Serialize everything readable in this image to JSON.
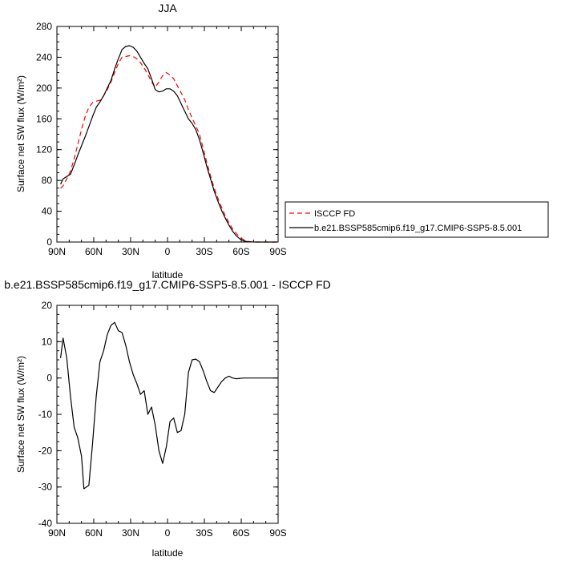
{
  "chart_data": [
    {
      "type": "line",
      "title": "JJA",
      "xlabel": "latitude",
      "ylabel": "Surface net SW flux (W/m²)",
      "xlim": [
        90,
        -90
      ],
      "ylim": [
        0,
        280
      ],
      "yticks": [
        0,
        40,
        80,
        120,
        160,
        200,
        240,
        280
      ],
      "xticks": [
        90,
        60,
        30,
        0,
        -30,
        -60,
        -90
      ],
      "xtick_labels": [
        "90N",
        "60N",
        "30N",
        "0",
        "30S",
        "60S",
        "90S"
      ],
      "legend": "right, outside plot",
      "series": [
        {
          "name": "ISCCP FD",
          "color": "#ff0000",
          "dash": "dashed",
          "x": [
            87,
            85,
            82,
            79,
            76,
            73,
            70,
            67,
            64,
            61,
            58,
            55,
            52,
            49,
            46,
            43,
            40,
            37,
            34,
            31,
            28,
            25,
            22,
            19,
            16,
            13,
            10,
            7,
            4,
            1,
            -2,
            -5,
            -8,
            -11,
            -14,
            -17,
            -20,
            -23,
            -26,
            -29,
            -32,
            -35,
            -38,
            -41,
            -44,
            -47,
            -50,
            -53,
            -56,
            -59,
            -62,
            -65,
            -68,
            -71,
            -74,
            -77,
            -80,
            -83,
            -86,
            -89
          ],
          "values": [
            70,
            73,
            82,
            92,
            108,
            127,
            146,
            163,
            175,
            181,
            183,
            184,
            190,
            198,
            208,
            220,
            232,
            240,
            241,
            242,
            241,
            238,
            233,
            226,
            218,
            208,
            201,
            208,
            216,
            220,
            217,
            212,
            203,
            194,
            185,
            172,
            161,
            151,
            140,
            122,
            103,
            86,
            70,
            57,
            45,
            34,
            25,
            17,
            11,
            6,
            3,
            1,
            0.3,
            0,
            0,
            0,
            0,
            0,
            0,
            0
          ]
        },
        {
          "name": "b.e21.BSSP585cmip6.f19_g17.CMIP6-SSP5-8.5.001",
          "color": "#000000",
          "dash": "solid",
          "x": [
            87,
            85,
            82,
            79,
            76,
            73,
            70,
            67,
            64,
            61,
            58,
            55,
            52,
            49,
            46,
            43,
            40,
            37,
            34,
            31,
            28,
            25,
            22,
            19,
            16,
            13,
            10,
            7,
            4,
            1,
            -2,
            -5,
            -8,
            -11,
            -14,
            -17,
            -20,
            -23,
            -26,
            -29,
            -32,
            -35,
            -38,
            -41,
            -44,
            -47,
            -50,
            -53,
            -56,
            -59,
            -62,
            -65,
            -68,
            -71,
            -74,
            -77,
            -80,
            -83,
            -86,
            -89
          ],
          "values": [
            75,
            82,
            85,
            88,
            100,
            113,
            125,
            137,
            150,
            163,
            175,
            182,
            190,
            200,
            210,
            225,
            238,
            250,
            254,
            255,
            253,
            248,
            240,
            232,
            225,
            212,
            198,
            195,
            196,
            199,
            199,
            196,
            190,
            180,
            170,
            160,
            154,
            146,
            133,
            116,
            98,
            82,
            66,
            53,
            41,
            31,
            22,
            14,
            8,
            4,
            1.5,
            0.5,
            0.2,
            0,
            0,
            0,
            0,
            0,
            0,
            0
          ]
        }
      ]
    },
    {
      "type": "line",
      "title": "b.e21.BSSP585cmip6.f19_g17.CMIP6-SSP5-8.5.001 - ISCCP FD",
      "xlabel": "latitude",
      "ylabel": "Surface net SW flux (W/m²)",
      "xlim": [
        90,
        -90
      ],
      "ylim": [
        -40,
        20
      ],
      "yticks": [
        -40,
        -30,
        -20,
        -10,
        0,
        10,
        20
      ],
      "xticks": [
        90,
        60,
        30,
        0,
        -30,
        -60,
        -90
      ],
      "xtick_labels": [
        "90N",
        "60N",
        "30N",
        "0",
        "30S",
        "60S",
        "90S"
      ],
      "series": [
        {
          "color": "#000000",
          "dash": "solid",
          "x": [
            87,
            85,
            82,
            79,
            76,
            73,
            70,
            68,
            64,
            61,
            58,
            55,
            52,
            49,
            46,
            43,
            40,
            37,
            34,
            31,
            28,
            25,
            22,
            19,
            16,
            13,
            10,
            7,
            4,
            1,
            -2,
            -5,
            -8,
            -11,
            -14,
            -17,
            -20,
            -23,
            -26,
            -29,
            -32,
            -35,
            -38,
            -41,
            -44,
            -47,
            -50,
            -53,
            -56,
            -59,
            -62,
            -65,
            -68,
            -71,
            -74,
            -77,
            -80,
            -83,
            -86,
            -89
          ],
          "values": [
            5.5,
            11,
            5.5,
            -5,
            -13.5,
            -16.5,
            -21.5,
            -30.5,
            -29.5,
            -18,
            -5,
            4.5,
            7.5,
            12,
            14.5,
            15.3,
            13,
            12.5,
            9,
            4.5,
            1,
            -1.5,
            -4.5,
            -3.5,
            -10,
            -8,
            -13,
            -20,
            -23.5,
            -19,
            -12,
            -11,
            -15,
            -14.5,
            -10,
            1.5,
            5,
            5.2,
            4.5,
            2,
            -1,
            -3.5,
            -4,
            -2.5,
            -1,
            0,
            0.5,
            0,
            -0.2,
            -0.1,
            0,
            0,
            0,
            0,
            0,
            0,
            0,
            0,
            0,
            0
          ]
        }
      ]
    }
  ]
}
